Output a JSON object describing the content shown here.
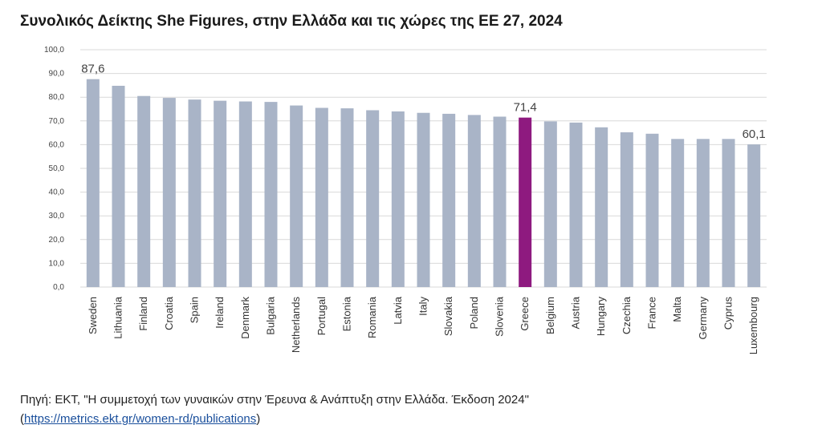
{
  "title": "Συνολικός Δείκτης She Figures, στην Ελλάδα και τις χώρες της ΕΕ 27, 2024",
  "source": {
    "text": "Πηγή: ΕΚΤ, \"Η συμμετοχή των γυναικών στην Έρευνα & Ανάπτυξη στην Ελλάδα. Έκδοση 2024\"",
    "open_paren": "(",
    "link": "https://metrics.ekt.gr/women-rd/publications",
    "close_paren": ")"
  },
  "chart_data": {
    "type": "bar",
    "title": "Συνολικός Δείκτης She Figures, στην Ελλάδα και τις χώρες της ΕΕ 27, 2024",
    "xlabel": "",
    "ylabel": "",
    "ylim": [
      0,
      100
    ],
    "yticks": [
      "0,0",
      "10,0",
      "20,0",
      "30,0",
      "40,0",
      "50,0",
      "60,0",
      "70,0",
      "80,0",
      "90,0",
      "100,0"
    ],
    "grid": true,
    "categories": [
      "Sweden",
      "Lithuania",
      "Finland",
      "Croatia",
      "Spain",
      "Ireland",
      "Denmark",
      "Bulgaria",
      "Netherlands",
      "Portugal",
      "Estonia",
      "Romania",
      "Latvia",
      "Italy",
      "Slovakia",
      "Poland",
      "Slovenia",
      "Greece",
      "Belgium",
      "Austria",
      "Hungary",
      "Czechia",
      "France",
      "Malta",
      "Germany",
      "Cyprus",
      "Luxembourg"
    ],
    "values": [
      87.6,
      84.8,
      80.5,
      79.7,
      79.0,
      78.5,
      78.2,
      78.0,
      76.5,
      75.5,
      75.3,
      74.5,
      74.0,
      73.4,
      73.0,
      72.5,
      71.8,
      71.4,
      69.8,
      69.3,
      67.3,
      65.2,
      64.6,
      62.4,
      62.4,
      62.4,
      60.1
    ],
    "data_labels": [
      {
        "category": "Sweden",
        "text": "87,6"
      },
      {
        "category": "Greece",
        "text": "71,4"
      },
      {
        "category": "Luxembourg",
        "text": "60,1"
      }
    ],
    "highlight": "Greece",
    "colors": {
      "bar": "#a9b4c7",
      "highlight": "#8e1a7f",
      "grid": "#d9d9d9"
    }
  }
}
